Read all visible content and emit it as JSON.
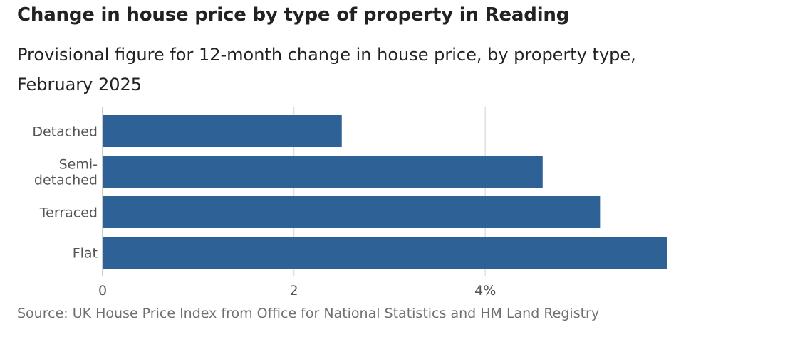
{
  "title": "Change in house price by type of property in Reading",
  "subtitle": "Provisional figure for 12-month change in house price, by property type, February 2025",
  "source": "Source: UK House Price Index from Office for National Statistics and HM Land Registry",
  "colors": {
    "bar": "#2e6196",
    "grid": "#e0e0e0",
    "axis": "#cccccc"
  },
  "chart_data": {
    "type": "bar",
    "orientation": "horizontal",
    "title": "Change in house price by type of property in Reading",
    "subtitle": "Provisional figure for 12-month change in house price, by property type, February 2025",
    "categories": [
      "Detached",
      "Semi-detached",
      "Terraced",
      "Flat"
    ],
    "category_labels": [
      [
        "Detached"
      ],
      [
        "Semi-",
        "detached"
      ],
      [
        "Terraced"
      ],
      [
        "Flat"
      ]
    ],
    "values": [
      2.5,
      4.6,
      5.2,
      5.9
    ],
    "xlabel": "",
    "ylabel": "",
    "xlim": [
      0,
      6
    ],
    "xticks": [
      0,
      2,
      4
    ],
    "xtick_labels": [
      "0",
      "2",
      "4%"
    ],
    "grid": "vertical",
    "legend": "none",
    "source": "Source: UK House Price Index from Office for National Statistics and HM Land Registry"
  }
}
